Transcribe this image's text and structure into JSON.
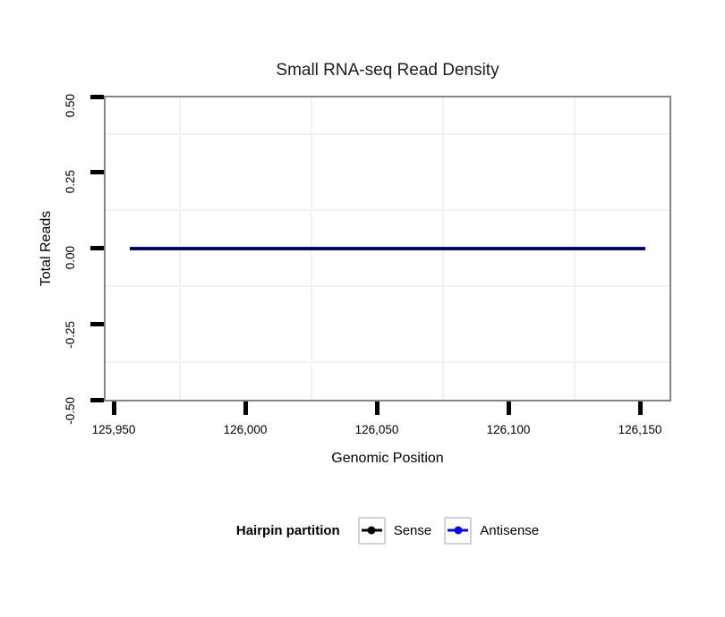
{
  "chart_data": {
    "type": "line",
    "title": "Small RNA-seq Read Density",
    "xlabel": "Genomic Position",
    "ylabel": "Total Reads",
    "x_ticks": [
      125950,
      126000,
      126050,
      126100,
      126150
    ],
    "x_tick_labels": [
      "125,950",
      "126,000",
      "126,050",
      "126,100",
      "126,150"
    ],
    "y_ticks": [
      0.5,
      0.25,
      0,
      -0.25,
      -0.5
    ],
    "y_tick_labels": [
      "0.50",
      "0.25",
      "0.00",
      "-0.25",
      "-0.50"
    ],
    "xlim": [
      125946,
      126162
    ],
    "ylim": [
      -0.5,
      0.5
    ],
    "grid": "minor-gridlines-only",
    "panel_border_color": "#868686",
    "gridline_color": "#f2f2f2",
    "legend": {
      "title": "Hairpin partition",
      "position": "bottom"
    },
    "series": [
      {
        "name": "Antisense",
        "color": "#0a0ae0",
        "x_start": 125956,
        "x_end": 126152,
        "y_constant": 0,
        "stroke_px": 4
      },
      {
        "name": "Sense",
        "color": "#000000",
        "x_start": 125956,
        "x_end": 126152,
        "y_constant": 0,
        "stroke_px": 2
      }
    ],
    "legend_order": [
      "Sense",
      "Antisense"
    ]
  }
}
